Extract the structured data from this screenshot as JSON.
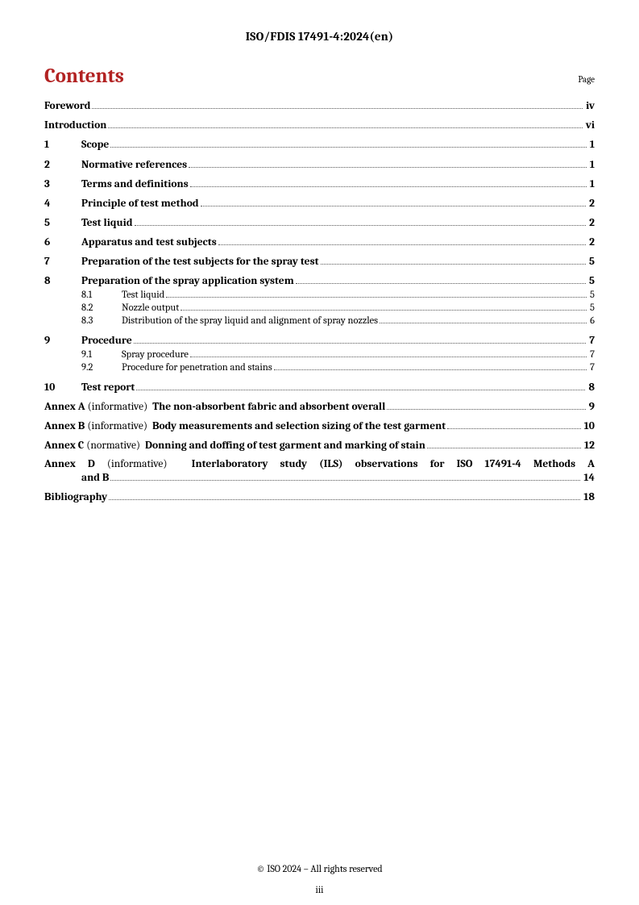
{
  "header": "ISO/FDIS 17491-4:2024(en)",
  "contents_label": "Contents",
  "page_label": "Page",
  "toc_flat": [
    {
      "title": "Foreword",
      "page": "iv"
    },
    {
      "title": "Introduction",
      "page": "vi"
    }
  ],
  "toc_numbered": [
    {
      "num": "1",
      "title": "Scope",
      "page": "1",
      "subs": []
    },
    {
      "num": "2",
      "title": "Normative references",
      "page": "1",
      "subs": []
    },
    {
      "num": "3",
      "title": "Terms and definitions",
      "page": "1",
      "subs": []
    },
    {
      "num": "4",
      "title": "Principle of test method",
      "page": "2",
      "subs": []
    },
    {
      "num": "5",
      "title": "Test liquid",
      "page": "2",
      "subs": []
    },
    {
      "num": "6",
      "title": "Apparatus and test subjects",
      "page": "2",
      "subs": []
    },
    {
      "num": "7",
      "title": "Preparation of the test subjects for the spray test",
      "page": "5",
      "subs": []
    },
    {
      "num": "8",
      "title": "Preparation of the spray application system",
      "page": "5",
      "subs": [
        {
          "num": "8.1",
          "title": "Test liquid",
          "page": "5"
        },
        {
          "num": "8.2",
          "title": "Nozzle output",
          "page": "5"
        },
        {
          "num": "8.3",
          "title": "Distribution of the spray liquid and alignment of spray nozzles",
          "page": "6"
        }
      ]
    },
    {
      "num": "9",
      "title": "Procedure",
      "page": "7",
      "subs": [
        {
          "num": "9.1",
          "title": "Spray procedure",
          "page": "7"
        },
        {
          "num": "9.2",
          "title": "Procedure for penetration and stains",
          "page": "7"
        }
      ]
    },
    {
      "num": "10",
      "title": "Test report",
      "page": "8",
      "subs": []
    }
  ],
  "annexes": [
    {
      "label": "Annex A",
      "type": "(informative)",
      "title": "The non-absorbent fabric and absorbent overall",
      "page": "9",
      "multi": false
    },
    {
      "label": "Annex B",
      "type": "(informative)",
      "title": "Body measurements and selection sizing of the test garment",
      "page": "10",
      "multi": false
    },
    {
      "label": "Annex C",
      "type": "(normative)",
      "title": "Donning and doffing of test garment and marking of stain",
      "page": "12",
      "multi": false
    },
    {
      "label": "Annex D",
      "type": "(informative)",
      "line1": "Interlaboratory study (ILS) observations for ISO 17491-4 Methods A",
      "line2": "and B",
      "page": "14",
      "multi": true
    }
  ],
  "bibliography": {
    "title": "Bibliography",
    "page": "18"
  },
  "footer_copyright": "© ISO 2024 – All rights reserved",
  "footer_page": "iii",
  "colors": {
    "heading": "#b22222",
    "text": "#000000",
    "background": "#ffffff"
  }
}
